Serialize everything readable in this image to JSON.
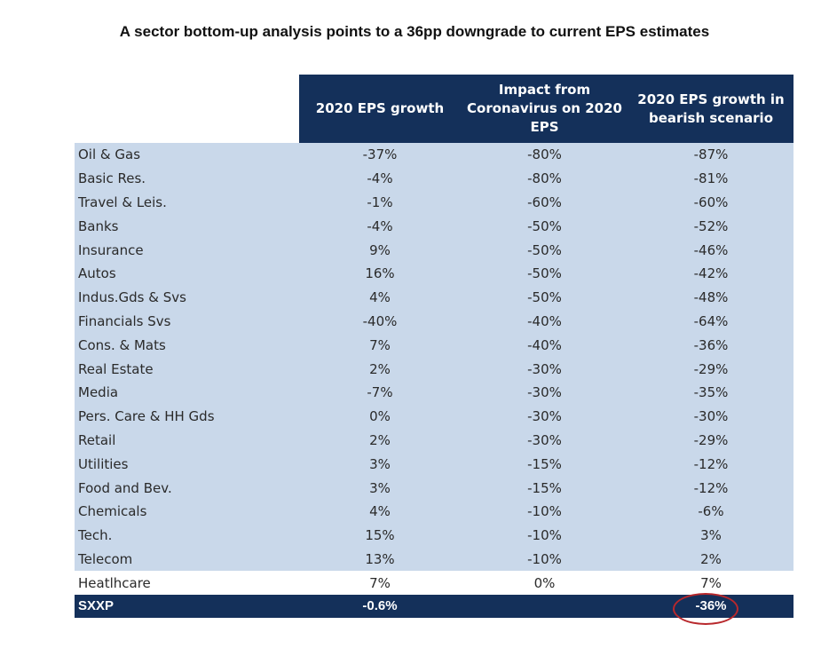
{
  "title": "A sector bottom-up analysis points to a 36pp downgrade to current EPS estimates",
  "chart_data": {
    "type": "table",
    "columns": [
      "",
      "2020 EPS growth",
      "Impact from Coronavirus on 2020 EPS",
      "2020 EPS growth in bearish scenario"
    ],
    "rows": [
      {
        "sector": "Oil & Gas",
        "eps_growth": "-37%",
        "impact": "-80%",
        "bearish": "-87%"
      },
      {
        "sector": "Basic Res.",
        "eps_growth": "-4%",
        "impact": "-80%",
        "bearish": "-81%"
      },
      {
        "sector": "Travel & Leis.",
        "eps_growth": "-1%",
        "impact": "-60%",
        "bearish": "-60%"
      },
      {
        "sector": "Banks",
        "eps_growth": "-4%",
        "impact": "-50%",
        "bearish": "-52%"
      },
      {
        "sector": "Insurance",
        "eps_growth": "9%",
        "impact": "-50%",
        "bearish": "-46%"
      },
      {
        "sector": "Autos",
        "eps_growth": "16%",
        "impact": "-50%",
        "bearish": "-42%"
      },
      {
        "sector": "Indus.Gds & Svs",
        "eps_growth": "4%",
        "impact": "-50%",
        "bearish": "-48%"
      },
      {
        "sector": "Financials Svs",
        "eps_growth": "-40%",
        "impact": "-40%",
        "bearish": "-64%"
      },
      {
        "sector": "Cons. & Mats",
        "eps_growth": "7%",
        "impact": "-40%",
        "bearish": "-36%"
      },
      {
        "sector": "Real Estate",
        "eps_growth": "2%",
        "impact": "-30%",
        "bearish": "-29%"
      },
      {
        "sector": "Media",
        "eps_growth": "-7%",
        "impact": "-30%",
        "bearish": "-35%"
      },
      {
        "sector": "Pers. Care & HH Gds",
        "eps_growth": "0%",
        "impact": "-30%",
        "bearish": "-30%"
      },
      {
        "sector": "Retail",
        "eps_growth": "2%",
        "impact": "-30%",
        "bearish": "-29%"
      },
      {
        "sector": "Utilities",
        "eps_growth": "3%",
        "impact": "-15%",
        "bearish": "-12%"
      },
      {
        "sector": "Food and Bev.",
        "eps_growth": "3%",
        "impact": "-15%",
        "bearish": "-12%"
      },
      {
        "sector": "Chemicals",
        "eps_growth": "4%",
        "impact": "-10%",
        "bearish": "-6%"
      },
      {
        "sector": "Tech.",
        "eps_growth": "15%",
        "impact": "-10%",
        "bearish": "3%"
      },
      {
        "sector": "Telecom",
        "eps_growth": "13%",
        "impact": "-10%",
        "bearish": "2%"
      },
      {
        "sector": "Heatlhcare",
        "eps_growth": "7%",
        "impact": "0%",
        "bearish": "7%",
        "shaded": false
      }
    ],
    "total": {
      "sector": "SXXP",
      "eps_growth": "-0.6%",
      "impact": "",
      "bearish": "-36%"
    },
    "colors": {
      "header_bg": "#14305a",
      "row_shade": "#c9d8ea",
      "highlight_ring": "#b8282c"
    }
  }
}
